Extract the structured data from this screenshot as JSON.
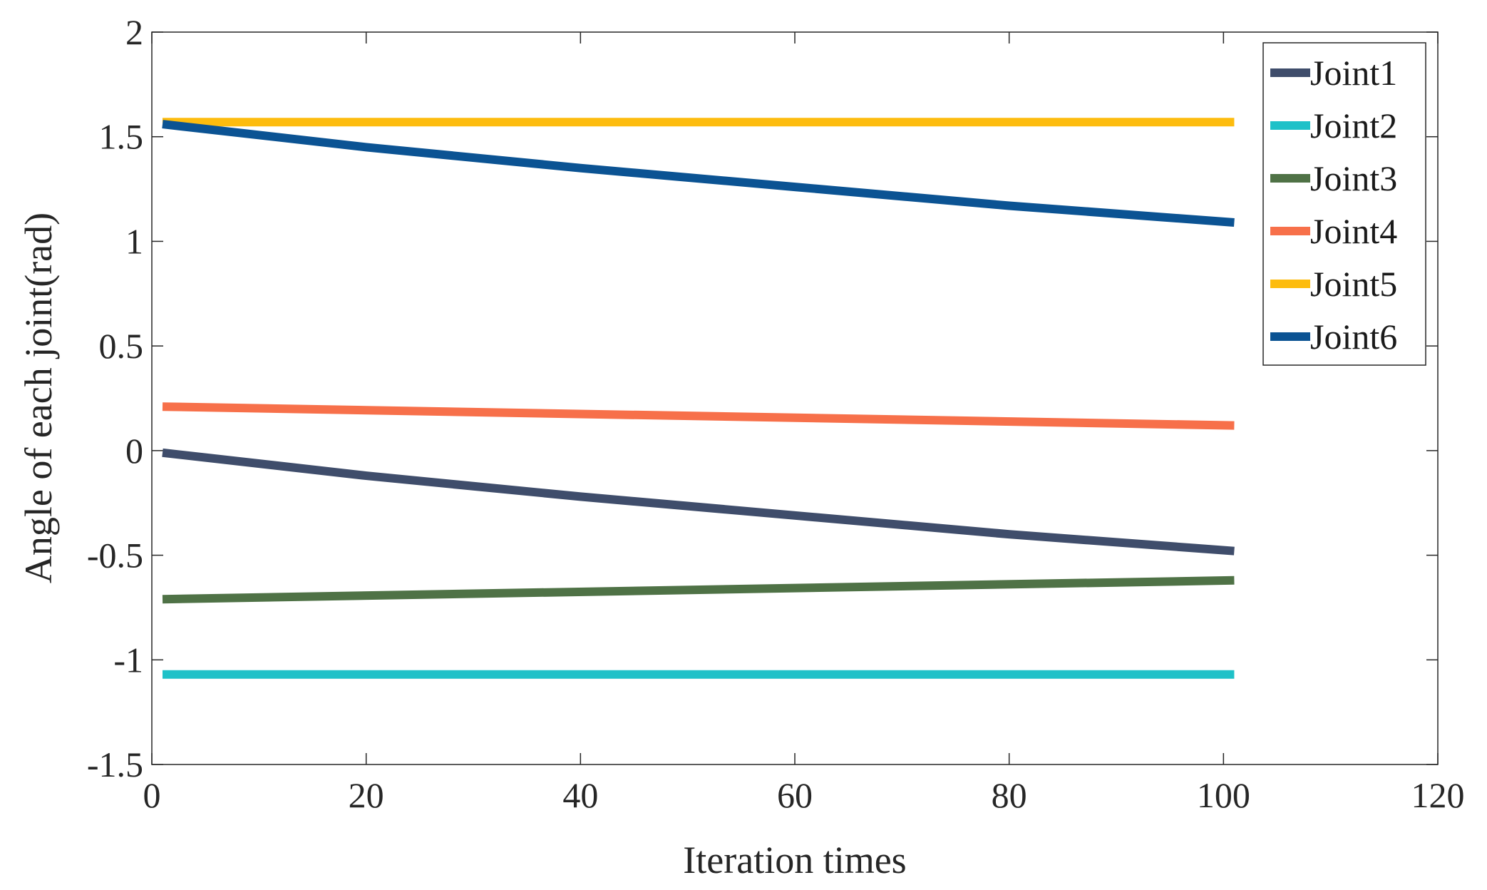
{
  "chart_data": {
    "type": "line",
    "title": "",
    "xlabel": "Iteration times",
    "ylabel": "Angle of each joint(rad)",
    "xlim": [
      0,
      120
    ],
    "ylim": [
      -1.5,
      2
    ],
    "xticks": [
      0,
      20,
      40,
      60,
      80,
      100,
      120
    ],
    "yticks": [
      -1.5,
      -1,
      -0.5,
      0,
      0.5,
      1,
      1.5,
      2
    ],
    "xtick_labels": [
      "0",
      "20",
      "40",
      "60",
      "80",
      "100",
      "120"
    ],
    "ytick_labels": [
      "-1.5",
      "-1",
      "-0.5",
      "0",
      "0.5",
      "1",
      "1.5",
      "2"
    ],
    "grid": false,
    "legend_position": "top-right",
    "series": [
      {
        "name": "Joint1",
        "color": "#3f4d6b",
        "x": [
          1,
          20,
          40,
          60,
          80,
          101
        ],
        "values": [
          -0.01,
          -0.12,
          -0.22,
          -0.31,
          -0.4,
          -0.48
        ]
      },
      {
        "name": "Joint2",
        "color": "#1fc1c8",
        "x": [
          1,
          101
        ],
        "values": [
          -1.07,
          -1.07
        ]
      },
      {
        "name": "Joint3",
        "color": "#4f7246",
        "x": [
          1,
          101
        ],
        "values": [
          -0.71,
          -0.62
        ]
      },
      {
        "name": "Joint4",
        "color": "#f7704a",
        "x": [
          1,
          101
        ],
        "values": [
          0.21,
          0.12
        ]
      },
      {
        "name": "Joint5",
        "color": "#fdbc0e",
        "x": [
          1,
          101
        ],
        "values": [
          1.57,
          1.57
        ]
      },
      {
        "name": "Joint6",
        "color": "#0b5393",
        "x": [
          1,
          20,
          40,
          60,
          80,
          101
        ],
        "values": [
          1.56,
          1.45,
          1.35,
          1.26,
          1.17,
          1.09
        ]
      }
    ]
  }
}
